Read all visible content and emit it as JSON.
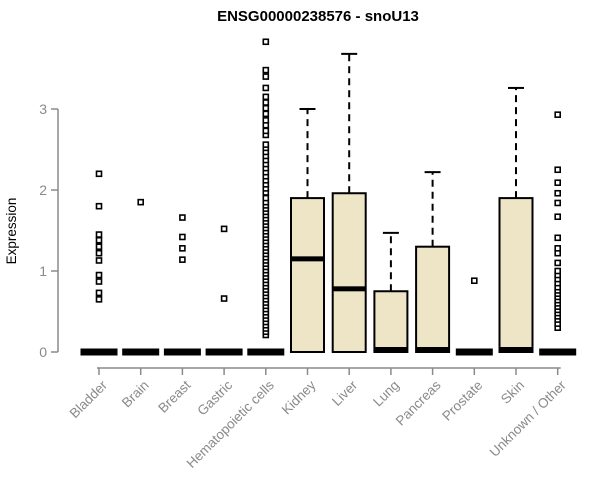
{
  "chart_data": {
    "type": "boxplot",
    "title": "ENSG00000238576 - snoU13",
    "xlabel": "",
    "ylabel": "Expression",
    "ylim": [
      0,
      3.9
    ],
    "yticks": [
      0,
      1,
      2,
      3
    ],
    "legend": "none",
    "grid": false,
    "categories": [
      "Bladder",
      "Brain",
      "Breast",
      "Gastric",
      "Hematopoietic cells",
      "Kidney",
      "Liver",
      "Lung",
      "Pancreas",
      "Prostate",
      "Skin",
      "Unknown / Other"
    ],
    "series": [
      {
        "name": "Bladder",
        "q1": 0,
        "median": 0,
        "q3": 0,
        "whisker_low": 0,
        "whisker_high": 0,
        "outliers": [
          0.65,
          0.73,
          0.87,
          0.95,
          1.13,
          1.22,
          1.3,
          1.38,
          1.45,
          1.8,
          2.2
        ]
      },
      {
        "name": "Brain",
        "q1": 0,
        "median": 0,
        "q3": 0,
        "whisker_low": 0,
        "whisker_high": 0,
        "outliers": [
          1.85
        ]
      },
      {
        "name": "Breast",
        "q1": 0,
        "median": 0,
        "q3": 0,
        "whisker_low": 0,
        "whisker_high": 0,
        "outliers": [
          1.14,
          1.28,
          1.42,
          1.66
        ]
      },
      {
        "name": "Gastric",
        "q1": 0,
        "median": 0,
        "q3": 0,
        "whisker_low": 0,
        "whisker_high": 0,
        "outliers": [
          0.66,
          1.52
        ]
      },
      {
        "name": "Hematopoietic cells",
        "q1": 0,
        "median": 0,
        "q3": 0,
        "whisker_low": 0,
        "whisker_high": 0,
        "outliers": [
          0.21,
          0.25,
          0.29,
          0.33,
          0.37,
          0.41,
          0.45,
          0.49,
          0.53,
          0.57,
          0.61,
          0.65,
          0.69,
          0.73,
          0.77,
          0.81,
          0.85,
          0.89,
          0.93,
          0.97,
          1.01,
          1.05,
          1.09,
          1.13,
          1.17,
          1.21,
          1.25,
          1.29,
          1.33,
          1.37,
          1.41,
          1.45,
          1.49,
          1.53,
          1.57,
          1.61,
          1.65,
          1.69,
          1.73,
          1.77,
          1.81,
          1.85,
          1.9,
          1.97,
          2.02,
          2.07,
          2.12,
          2.17,
          2.22,
          2.27,
          2.32,
          2.37,
          2.42,
          2.47,
          2.52,
          2.56,
          2.68,
          2.73,
          2.8,
          2.86,
          2.94,
          3.01,
          3.08,
          3.15,
          3.26,
          3.4,
          3.48,
          3.83
        ]
      },
      {
        "name": "Kidney",
        "q1": 0,
        "median": 1.15,
        "q3": 1.9,
        "whisker_low": 0,
        "whisker_high": 3.0,
        "outliers": []
      },
      {
        "name": "Liver",
        "q1": 0,
        "median": 0.78,
        "q3": 1.96,
        "whisker_low": 0,
        "whisker_high": 3.68,
        "outliers": []
      },
      {
        "name": "Lung",
        "q1": 0,
        "median": 0,
        "q3": 0.75,
        "whisker_low": 0,
        "whisker_high": 1.47,
        "outliers": []
      },
      {
        "name": "Pancreas",
        "q1": 0,
        "median": 0,
        "q3": 1.3,
        "whisker_low": 0,
        "whisker_high": 2.22,
        "outliers": []
      },
      {
        "name": "Prostate",
        "q1": 0,
        "median": 0,
        "q3": 0,
        "whisker_low": 0,
        "whisker_high": 0,
        "outliers": [
          0.88
        ]
      },
      {
        "name": "Skin",
        "q1": 0,
        "median": 0,
        "q3": 1.9,
        "whisker_low": 0,
        "whisker_high": 3.26,
        "outliers": []
      },
      {
        "name": "Unknown / Other",
        "q1": 0,
        "median": 0,
        "q3": 0,
        "whisker_low": 0,
        "whisker_high": 0,
        "outliers": [
          0.3,
          0.35,
          0.4,
          0.44,
          0.48,
          0.52,
          0.56,
          0.6,
          0.64,
          0.68,
          0.72,
          0.76,
          0.8,
          0.85,
          0.9,
          0.95,
          1.0,
          1.1,
          1.22,
          1.28,
          1.41,
          1.67,
          1.84,
          1.96,
          2.09,
          2.25,
          2.93
        ]
      }
    ]
  },
  "colors": {
    "box_fill": "#ede5c6",
    "box_border": "#000000",
    "median": "#000000",
    "whisker": "#000000",
    "outlier_stroke": "#000000",
    "outlier_fill": "#ffffff",
    "axis": "#8a8a8a",
    "tick_label": "#8a8a8a",
    "title": "#000000",
    "background": "#ffffff"
  }
}
